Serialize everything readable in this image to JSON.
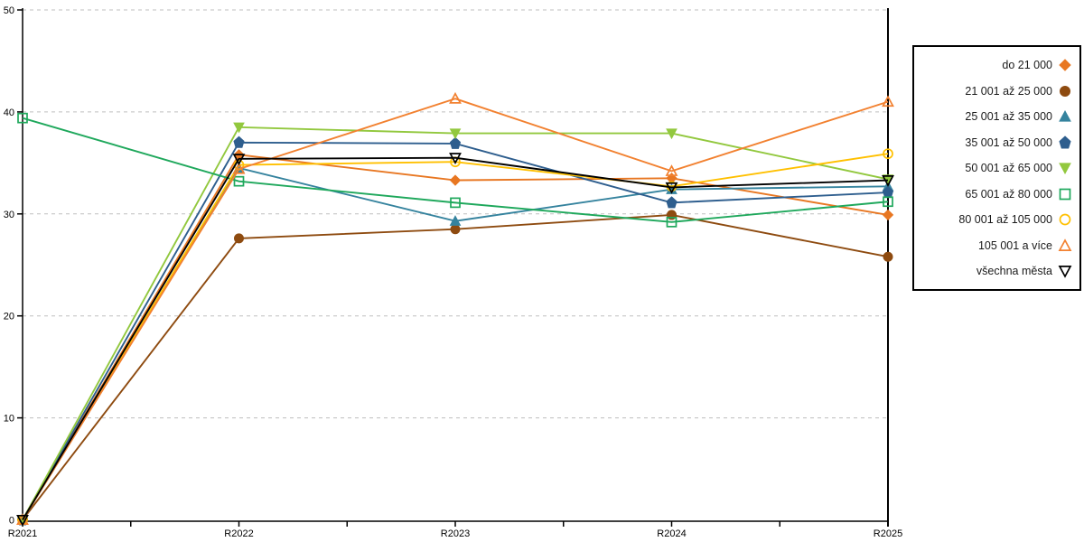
{
  "chart_data": {
    "type": "line",
    "title": "",
    "xlabel": "",
    "ylabel": "",
    "categories": [
      "R2021",
      "R2022",
      "R2023",
      "R2024",
      "R2025"
    ],
    "ylim": [
      0,
      50
    ],
    "yticks": [
      0,
      10,
      20,
      30,
      40,
      50
    ],
    "grid": "horizontal-dashed",
    "grid_color": "#bfbfbf",
    "axis_color": "#000000",
    "legend_position": "right-box",
    "series": [
      {
        "name": "do 21 000",
        "color": "#E87722",
        "marker": "diamond",
        "fill": "filled",
        "values": [
          0,
          35.8,
          33.3,
          33.5,
          29.9
        ]
      },
      {
        "name": "21 001 až 25 000",
        "color": "#8E4B10",
        "marker": "circle",
        "fill": "filled",
        "values": [
          0,
          27.6,
          28.5,
          29.9,
          25.8
        ]
      },
      {
        "name": "25 001 až 35 000",
        "color": "#35839E",
        "marker": "triangle-up",
        "fill": "filled",
        "values": [
          0,
          34.5,
          29.3,
          32.4,
          32.7
        ]
      },
      {
        "name": "35 001 až 50 000",
        "color": "#2E5E8E",
        "marker": "pentagon",
        "fill": "filled",
        "values": [
          0,
          37.0,
          36.9,
          31.1,
          32.1
        ]
      },
      {
        "name": "50 001 až 65 000",
        "color": "#92C83E",
        "marker": "triangle-down",
        "fill": "filled",
        "values": [
          0,
          38.5,
          37.9,
          37.9,
          33.4
        ]
      },
      {
        "name": "65 001 až 80 000",
        "color": "#1FA85C",
        "marker": "square",
        "fill": "open",
        "values": [
          39.4,
          33.2,
          31.1,
          29.2,
          31.2
        ]
      },
      {
        "name": "80 001 až 105 000",
        "color": "#FFC000",
        "marker": "circle",
        "fill": "open",
        "values": [
          0,
          34.8,
          35.1,
          32.7,
          35.9
        ]
      },
      {
        "name": "105 001 a více",
        "color": "#F28130",
        "marker": "triangle-up",
        "fill": "open",
        "values": [
          0,
          34.4,
          41.3,
          34.2,
          41.0
        ]
      },
      {
        "name": "všechna města",
        "color": "#000000",
        "marker": "triangle-down",
        "fill": "open",
        "values": [
          0,
          35.4,
          35.5,
          32.6,
          33.3
        ]
      }
    ]
  }
}
